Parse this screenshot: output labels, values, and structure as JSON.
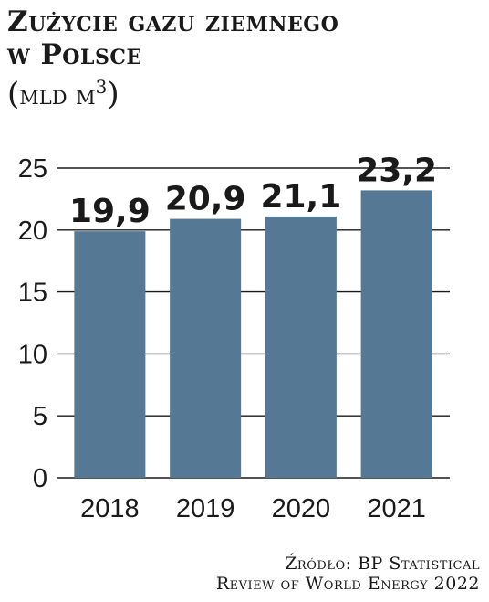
{
  "header": {
    "title_line1": "Zużycie gazu ziemnego",
    "title_line2": "w Polsce",
    "unit_open": "(",
    "unit_text": "mld m",
    "unit_sup": "3",
    "unit_close": ")"
  },
  "footer": {
    "source_line1": "Źródło: BP Statistical",
    "source_line2": "Review of World Energy 2022"
  },
  "colors": {
    "bar": "#557995",
    "grid": "#1a1a1a",
    "text": "#1a1a1a"
  },
  "chart_data": {
    "type": "bar",
    "title": "Zużycie gazu ziemnego w Polsce",
    "subtitle": "(mld m3)",
    "categories": [
      "2018",
      "2019",
      "2020",
      "2021"
    ],
    "values": [
      19.9,
      20.9,
      21.1,
      23.2
    ],
    "value_labels": [
      "19,9",
      "20,9",
      "21,1",
      "23,2"
    ],
    "xlabel": "",
    "ylabel": "",
    "ylim": [
      0,
      25
    ],
    "yticks": [
      0,
      5,
      10,
      15,
      20,
      25
    ],
    "grid": true,
    "legend": "none"
  }
}
